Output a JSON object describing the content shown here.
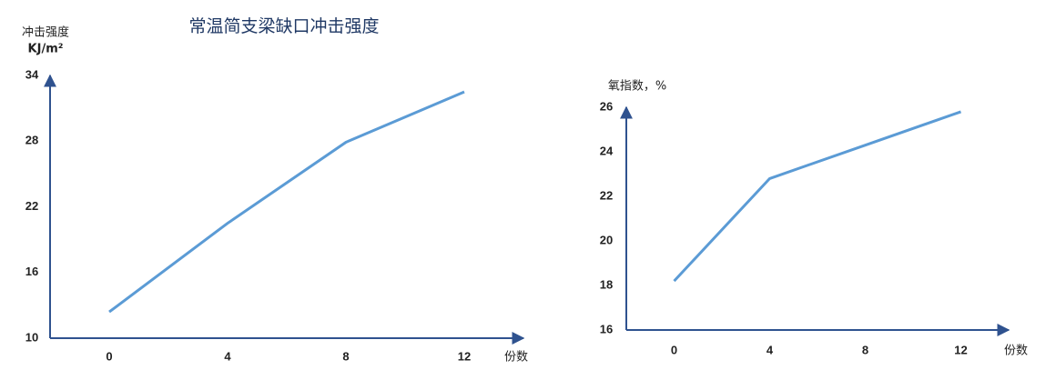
{
  "chart_data": [
    {
      "type": "line",
      "title": "常温简支梁缺口冲击强度",
      "ylabel": [
        "冲击强度",
        "KJ/m²"
      ],
      "xlabel": "份数",
      "x": [
        0,
        4,
        8,
        12
      ],
      "series": [
        {
          "name": "冲击强度",
          "color": "#5b9bd5",
          "values": [
            12.4,
            20.5,
            27.9,
            32.5
          ]
        }
      ],
      "xlim": [
        -2,
        14
      ],
      "xticks": [
        0,
        4,
        8,
        12
      ],
      "ylim": [
        10,
        34
      ],
      "yticks": [
        10,
        16,
        22,
        28,
        34
      ],
      "grid": false
    },
    {
      "type": "line",
      "ylabel": [
        "氧指数，%"
      ],
      "xlabel": "份数",
      "x": [
        0,
        4,
        8,
        12
      ],
      "series": [
        {
          "name": "氧指数",
          "color": "#5b9bd5",
          "values": [
            18.2,
            22.8,
            24.3,
            25.8
          ]
        }
      ],
      "xlim": [
        -2,
        14
      ],
      "xticks": [
        0,
        4,
        8,
        12
      ],
      "ylim": [
        16,
        26
      ],
      "yticks": [
        16,
        18,
        20,
        22,
        24,
        26
      ],
      "grid": false
    }
  ]
}
